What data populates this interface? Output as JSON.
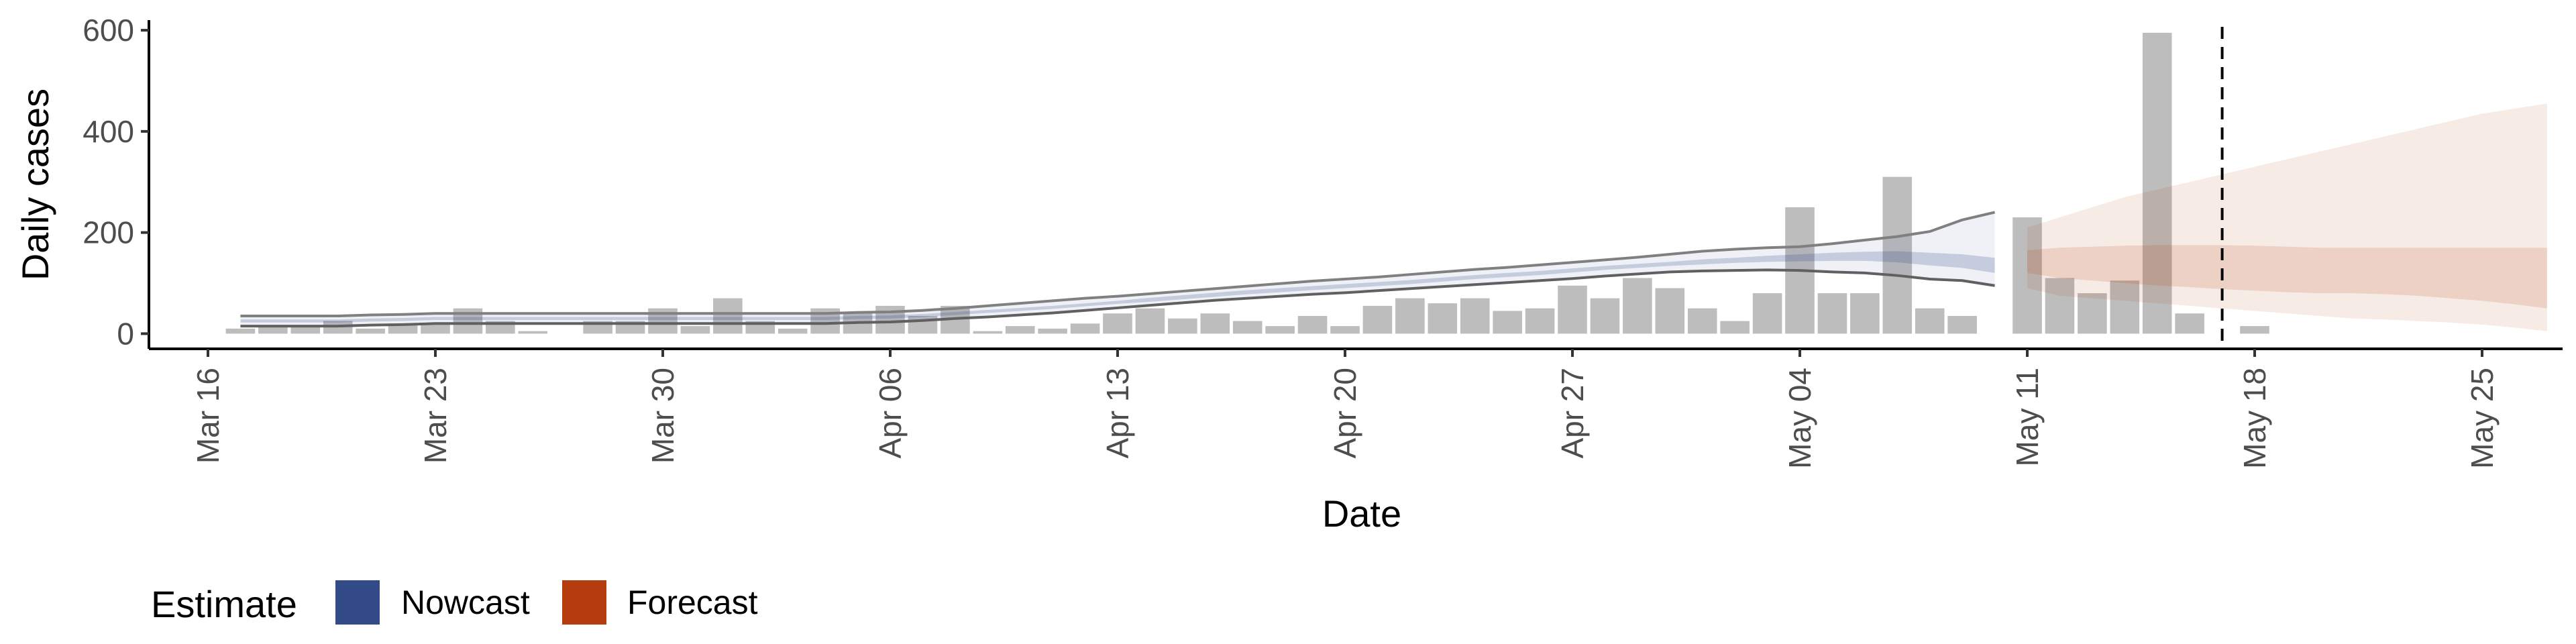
{
  "chart_data": {
    "type": "bar",
    "title": "",
    "xlabel": "Date",
    "ylabel": "Daily cases",
    "x_ticks": [
      "Mar 16",
      "Mar 23",
      "Mar 30",
      "Apr 06",
      "Apr 13",
      "Apr 20",
      "Apr 27",
      "May 04",
      "May 11",
      "May 18",
      "May 25"
    ],
    "y_ticks": [
      "0",
      "200",
      "400",
      "600"
    ],
    "ylim": [
      -30,
      620
    ],
    "xlim": [
      "2020-03-16",
      "2020-05-25"
    ],
    "grid": false,
    "reference_line": {
      "date": "2020-05-17",
      "style": "dashed"
    },
    "legend": {
      "title": "Estimate",
      "position": "bottom-left",
      "entries": [
        {
          "label": "Nowcast",
          "color": "#344b8a"
        },
        {
          "label": "Forecast",
          "color": "#b53c0e"
        }
      ]
    },
    "observed_cases": {
      "color": "#bdbdbd",
      "start_date": "2020-03-17",
      "values": [
        10,
        15,
        15,
        25,
        10,
        20,
        20,
        50,
        25,
        5,
        0,
        25,
        25,
        50,
        15,
        70,
        25,
        10,
        50,
        40,
        55,
        35,
        55,
        5,
        15,
        10,
        20,
        40,
        50,
        30,
        40,
        25,
        15,
        35,
        15,
        55,
        70,
        60,
        70,
        45,
        50,
        95,
        70,
        110,
        90,
        50,
        25,
        80,
        250,
        80,
        80,
        310,
        50,
        35,
        0,
        230,
        110,
        80,
        105,
        595,
        40,
        0,
        15
      ]
    },
    "series": [
      {
        "name": "Nowcast",
        "color": "#344b8a",
        "start_date": "2020-03-17",
        "median": [
          25,
          25,
          25,
          25,
          27,
          28,
          30,
          30,
          30,
          30,
          30,
          30,
          30,
          30,
          30,
          30,
          30,
          30,
          30,
          32,
          33,
          36,
          40,
          44,
          48,
          52,
          57,
          62,
          67,
          72,
          77,
          82,
          86,
          90,
          94,
          98,
          102,
          107,
          112,
          116,
          120,
          125,
          130,
          134,
          138,
          142,
          145,
          148,
          150,
          152,
          153,
          152,
          147,
          143,
          135
        ],
        "lower_90": [
          15,
          15,
          15,
          15,
          17,
          18,
          20,
          20,
          20,
          20,
          20,
          20,
          20,
          20,
          20,
          20,
          20,
          20,
          20,
          22,
          23,
          26,
          30,
          33,
          37,
          41,
          46,
          51,
          56,
          61,
          66,
          70,
          74,
          78,
          81,
          85,
          89,
          93,
          97,
          101,
          105,
          109,
          114,
          118,
          122,
          124,
          125,
          126,
          125,
          122,
          120,
          115,
          108,
          105,
          95
        ],
        "upper_90": [
          35,
          35,
          35,
          35,
          37,
          38,
          40,
          40,
          40,
          40,
          40,
          40,
          40,
          40,
          40,
          40,
          40,
          40,
          40,
          42,
          43,
          46,
          50,
          55,
          60,
          65,
          70,
          74,
          79,
          84,
          89,
          94,
          99,
          104,
          108,
          112,
          117,
          122,
          127,
          131,
          136,
          141,
          146,
          151,
          157,
          163,
          167,
          170,
          172,
          178,
          185,
          192,
          202,
          225,
          240
        ],
        "lower_50": [
          22,
          22,
          22,
          22,
          24,
          25,
          27,
          27,
          27,
          27,
          27,
          27,
          27,
          27,
          27,
          27,
          27,
          27,
          27,
          29,
          30,
          33,
          37,
          41,
          45,
          49,
          54,
          59,
          63,
          68,
          73,
          78,
          82,
          86,
          90,
          94,
          98,
          103,
          108,
          112,
          116,
          121,
          126,
          130,
          134,
          137,
          140,
          142,
          143,
          144,
          144,
          141,
          135,
          130,
          120
        ],
        "upper_50": [
          28,
          28,
          28,
          28,
          30,
          31,
          33,
          33,
          33,
          33,
          33,
          33,
          33,
          33,
          33,
          33,
          33,
          33,
          33,
          35,
          36,
          39,
          43,
          47,
          51,
          55,
          60,
          65,
          71,
          76,
          81,
          86,
          90,
          94,
          98,
          102,
          106,
          111,
          116,
          120,
          124,
          129,
          134,
          138,
          142,
          147,
          150,
          154,
          157,
          160,
          162,
          163,
          160,
          157,
          150
        ]
      },
      {
        "name": "Forecast",
        "color": "#b53c0e",
        "start_date": "2020-05-11",
        "median": [
          145,
          140,
          138,
          135,
          133,
          130,
          128,
          127,
          125,
          123,
          122,
          120,
          118,
          116,
          113,
          110,
          105
        ],
        "lower_90": [
          90,
          75,
          70,
          65,
          60,
          55,
          50,
          45,
          40,
          35,
          30,
          28,
          25,
          22,
          18,
          12,
          5
        ],
        "upper_90": [
          210,
          230,
          250,
          270,
          285,
          300,
          315,
          330,
          345,
          360,
          375,
          390,
          405,
          420,
          435,
          445,
          455
        ],
        "lower_50": [
          120,
          110,
          105,
          100,
          95,
          92,
          88,
          85,
          82,
          80,
          80,
          78,
          75,
          70,
          65,
          58,
          50
        ],
        "upper_50": [
          165,
          170,
          172,
          174,
          175,
          175,
          175,
          174,
          172,
          170,
          170,
          170,
          170,
          170,
          170,
          170,
          170
        ]
      }
    ]
  }
}
